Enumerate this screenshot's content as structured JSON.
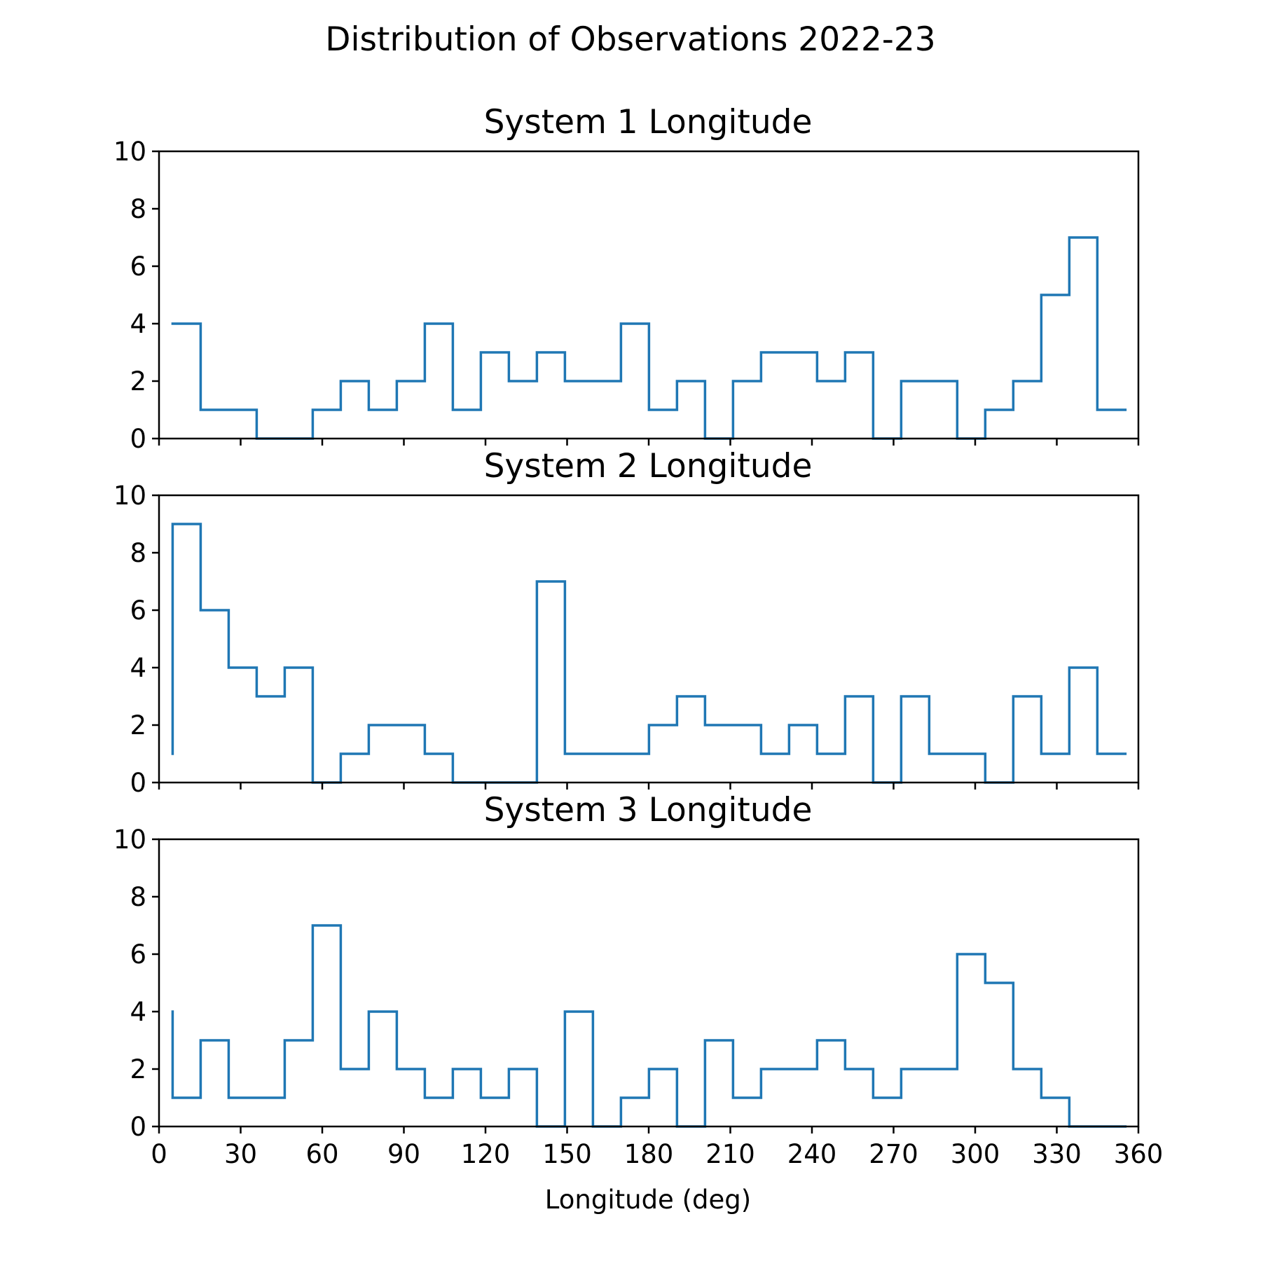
{
  "figure": {
    "title": "Distribution of Observations 2022-23"
  },
  "colors": {
    "series": "#1f77b4",
    "axes": "#000000",
    "background": "#ffffff"
  },
  "chart_data": [
    {
      "type": "histogram",
      "title": "System 1 Longitude",
      "xlabel": "",
      "ylabel": "",
      "xlim": [
        0,
        360
      ],
      "ylim": [
        0,
        10
      ],
      "xticks": [
        0,
        30,
        60,
        90,
        120,
        150,
        180,
        210,
        240,
        270,
        300,
        330,
        360
      ],
      "yticks": [
        0,
        2,
        4,
        6,
        8,
        10
      ],
      "show_xtick_labels": false,
      "grid": false,
      "bin_edges": [
        5,
        15.3,
        25.6,
        35.9,
        46.2,
        56.5,
        66.8,
        77.1,
        87.4,
        97.7,
        108,
        118.3,
        128.6,
        138.9,
        149.2,
        159.5,
        169.8,
        180.1,
        190.4,
        200.7,
        211,
        221.3,
        231.6,
        241.9,
        252.2,
        262.5,
        272.8,
        283.1,
        293.4,
        303.7,
        314,
        324.3,
        334.6,
        344.9,
        355.2
      ],
      "counts": [
        4,
        1,
        1,
        0,
        0,
        1,
        2,
        1,
        2,
        4,
        1,
        3,
        2,
        3,
        2,
        2,
        4,
        1,
        2,
        0,
        2,
        3,
        3,
        2,
        3,
        0,
        2,
        2,
        0,
        1,
        2,
        5,
        7,
        1
      ]
    },
    {
      "type": "histogram",
      "title": "System 2 Longitude",
      "xlabel": "",
      "ylabel": "",
      "xlim": [
        0,
        360
      ],
      "ylim": [
        0,
        10
      ],
      "xticks": [
        0,
        30,
        60,
        90,
        120,
        150,
        180,
        210,
        240,
        270,
        300,
        330,
        360
      ],
      "yticks": [
        0,
        2,
        4,
        6,
        8,
        10
      ],
      "show_xtick_labels": false,
      "grid": false,
      "bin_edges": [
        5,
        15.3,
        25.6,
        35.9,
        46.2,
        56.5,
        66.8,
        77.1,
        87.4,
        97.7,
        108,
        118.3,
        128.6,
        138.9,
        149.2,
        159.5,
        169.8,
        180.1,
        190.4,
        200.7,
        211,
        221.3,
        231.6,
        241.9,
        252.2,
        262.5,
        272.8,
        283.1,
        293.4,
        303.7,
        314,
        324.3,
        334.6,
        344.9,
        355.2
      ],
      "counts": [
        9,
        6,
        4,
        3,
        4,
        0,
        1,
        2,
        2,
        1,
        0,
        0,
        0,
        7,
        1,
        1,
        1,
        2,
        3,
        2,
        2,
        1,
        2,
        1,
        3,
        0,
        3,
        1,
        1,
        0,
        3,
        1,
        4,
        1
      ],
      "left_edge_drop_to": 1
    },
    {
      "type": "histogram",
      "title": "System 3 Longitude",
      "xlabel": "Longitude (deg)",
      "ylabel": "",
      "xlim": [
        0,
        360
      ],
      "ylim": [
        0,
        10
      ],
      "xticks": [
        0,
        30,
        60,
        90,
        120,
        150,
        180,
        210,
        240,
        270,
        300,
        330,
        360
      ],
      "yticks": [
        0,
        2,
        4,
        6,
        8,
        10
      ],
      "show_xtick_labels": true,
      "grid": false,
      "bin_edges": [
        5,
        15.3,
        25.6,
        35.9,
        46.2,
        56.5,
        66.8,
        77.1,
        87.4,
        97.7,
        108,
        118.3,
        128.6,
        138.9,
        149.2,
        159.5,
        169.8,
        180.1,
        190.4,
        200.7,
        211,
        221.3,
        231.6,
        241.9,
        252.2,
        262.5,
        272.8,
        283.1,
        293.4,
        303.7,
        314,
        324.3,
        334.6,
        344.9,
        355.2
      ],
      "counts": [
        1,
        3,
        1,
        1,
        3,
        7,
        2,
        4,
        2,
        1,
        2,
        1,
        2,
        0,
        4,
        0,
        1,
        2,
        0,
        3,
        1,
        2,
        2,
        3,
        2,
        1,
        2,
        2,
        6,
        5,
        2,
        1,
        0,
        0
      ],
      "left_edge_rise_to": 4
    }
  ]
}
